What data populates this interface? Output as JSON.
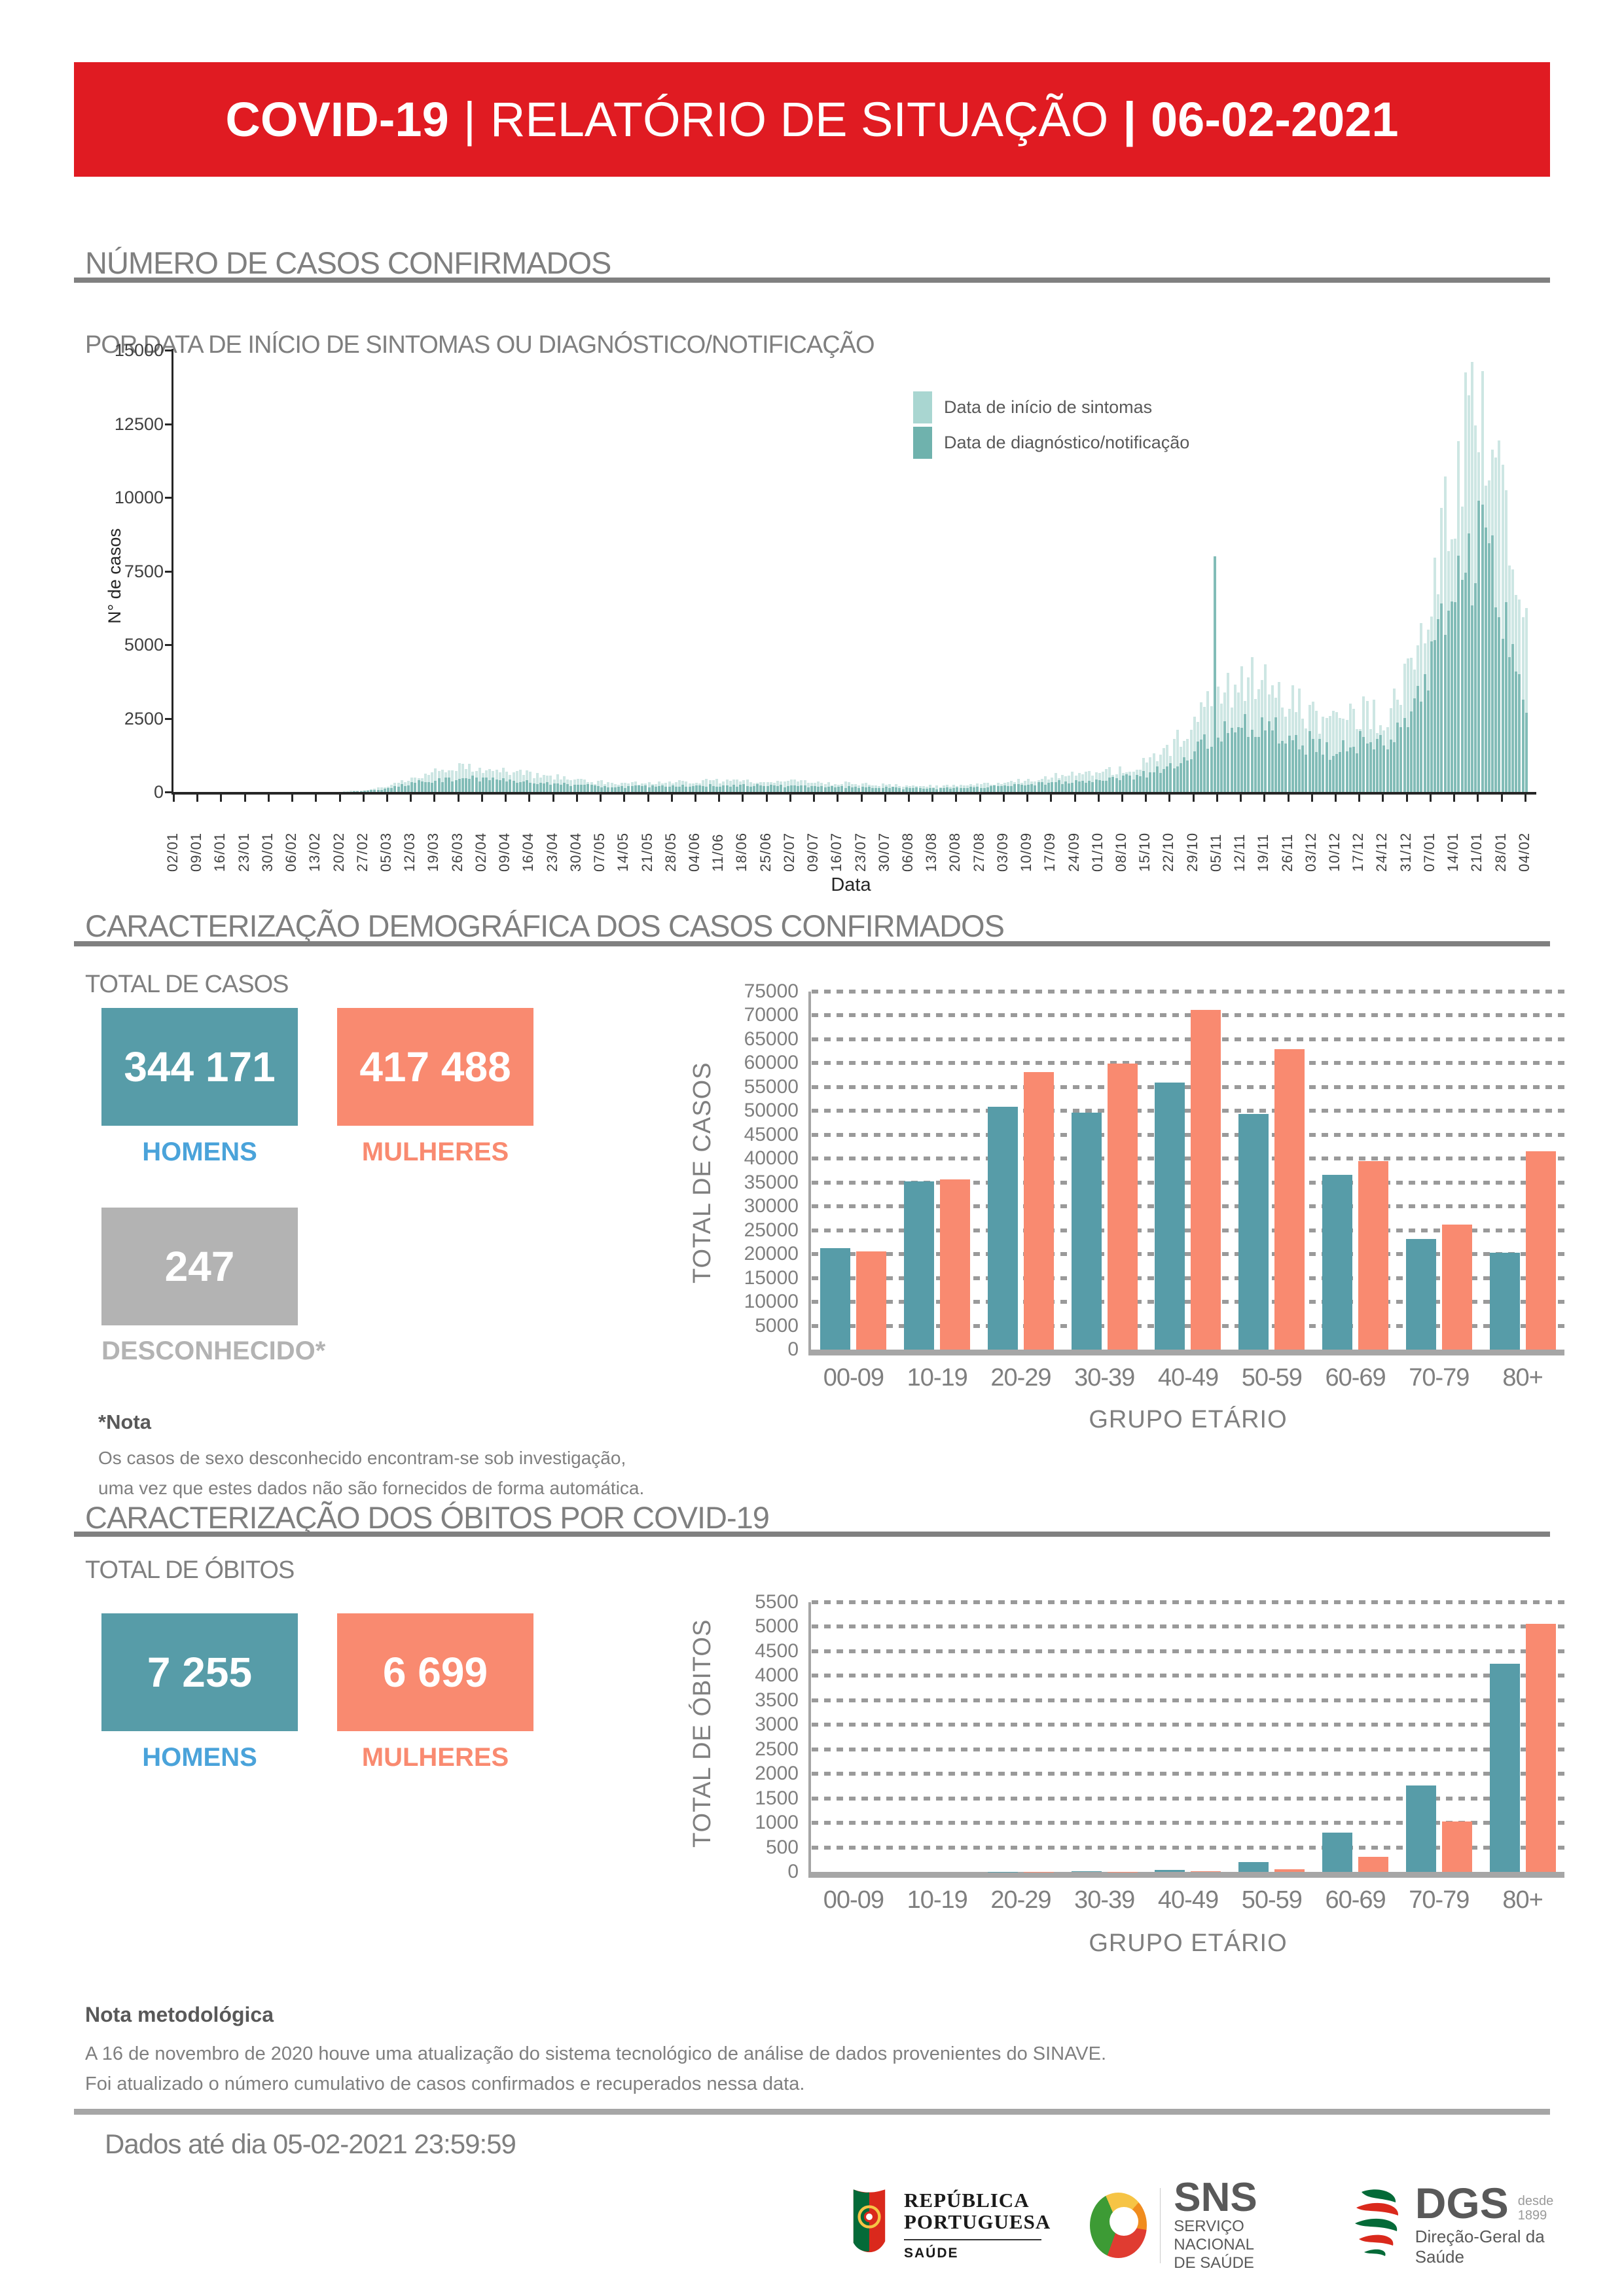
{
  "header": {
    "product": "COVID-19",
    "pipe": "|",
    "title": "RELATÓRIO DE SITUAÇÃO",
    "date": "06-02-2021"
  },
  "sections": {
    "cases": {
      "title": "NÚMERO DE CASOS CONFIRMADOS",
      "subtitle": "POR DATA DE INÍCIO DE SINTOMAS OU DIAGNÓSTICO/NOTIFICAÇÃO"
    },
    "demography": {
      "title": "CARACTERIZAÇÃO DEMOGRÁFICA DOS CASOS CONFIRMADOS",
      "total_label": "TOTAL DE CASOS",
      "cards": [
        {
          "value": "344 171",
          "label": "HOMENS"
        },
        {
          "value": "417 488",
          "label": "MULHERES"
        },
        {
          "value": "247",
          "label": "DESCONHECIDO*"
        }
      ],
      "note_title": "*Nota",
      "note_lines": [
        "Os casos de sexo desconhecido encontram-se sob investigação,",
        "uma vez que estes dados não são fornecidos de forma automática."
      ]
    },
    "deaths": {
      "title": "CARACTERIZAÇÃO DOS ÓBITOS POR COVID-19",
      "total_label": "TOTAL DE ÓBITOS",
      "cards": [
        {
          "value": "7 255",
          "label": "HOMENS"
        },
        {
          "value": "6 699",
          "label": "MULHERES"
        }
      ]
    }
  },
  "methodology": {
    "title": "Nota metodológica",
    "lines": [
      "A 16 de novembro de 2020 houve uma atualização do sistema tecnológico de análise de dados provenientes do SINAVE.",
      "Foi atualizado o número cumulativo de casos confirmados e recuperados nessa data."
    ]
  },
  "data_until": "Dados até dia 05-02-2021 23:59:59",
  "footer_logos": {
    "republica": {
      "line1": "REPÚBLICA",
      "line2": "PORTUGUESA",
      "sub": "SAÚDE"
    },
    "sns": {
      "abbr": "SNS",
      "line1": "SERVIÇO NACIONAL",
      "line2": "DE SAÚDE"
    },
    "dgs": {
      "abbr": "DGS",
      "since_word": "desde",
      "since_year": "1899",
      "sub": "Direção-Geral da Saúde"
    }
  },
  "colors": {
    "banner_red": "#e01b22",
    "title_gray": "#7f7f7f",
    "teal": "#579ca8",
    "salmon": "#f98a70",
    "gray_card": "#b3b3b3",
    "homens_blue": "#4aa3da",
    "bar_light": "#cde6e3",
    "bar_dark": "#82bcb7",
    "grid_dot": "#9a9a9a",
    "axis_gray": "#a6a6a6"
  },
  "chart_data": [
    {
      "id": "timeline",
      "type": "bar",
      "ylabel": "N° de casos",
      "xlabel": "Data",
      "ylim": [
        0,
        15000
      ],
      "yticks": [
        0,
        2500,
        5000,
        7500,
        10000,
        12500,
        15000
      ],
      "layout": {
        "legend_position": "inside-top-right",
        "grid": false,
        "bars": "daily",
        "tick_labels": "weekly"
      },
      "week_labels": [
        "02/01",
        "09/01",
        "16/01",
        "23/01",
        "30/01",
        "06/02",
        "13/02",
        "20/02",
        "27/02",
        "05/03",
        "12/03",
        "19/03",
        "26/03",
        "02/04",
        "09/04",
        "16/04",
        "23/04",
        "30/04",
        "07/05",
        "14/05",
        "21/05",
        "28/05",
        "04/06",
        "11/06",
        "18/06",
        "25/06",
        "02/07",
        "09/07",
        "16/07",
        "23/07",
        "30/07",
        "06/08",
        "13/08",
        "20/08",
        "27/08",
        "03/09",
        "10/09",
        "17/09",
        "24/09",
        "01/10",
        "08/10",
        "15/10",
        "22/10",
        "29/10",
        "05/11",
        "12/11",
        "19/11",
        "26/11",
        "03/12",
        "10/12",
        "17/12",
        "24/12",
        "31/12",
        "07/01",
        "14/01",
        "21/01",
        "28/01",
        "04/02"
      ],
      "series": [
        {
          "name": "Data de início de sintomas",
          "color": "#cde6e3",
          "weekly_values": [
            0,
            0,
            0,
            0,
            0,
            2,
            5,
            15,
            60,
            180,
            480,
            750,
            880,
            820,
            680,
            600,
            520,
            420,
            330,
            300,
            310,
            330,
            360,
            370,
            380,
            360,
            350,
            330,
            300,
            270,
            240,
            210,
            200,
            230,
            260,
            320,
            420,
            520,
            580,
            640,
            750,
            1000,
            1500,
            2400,
            3400,
            3900,
            3600,
            3100,
            2600,
            2400,
            2700,
            2600,
            3800,
            7000,
            10500,
            13500,
            10000,
            5200
          ]
        },
        {
          "name": "Data de diagnóstico/notificação",
          "color": "#82bcb7",
          "weekly_values": [
            0,
            0,
            0,
            0,
            0,
            1,
            3,
            10,
            40,
            120,
            300,
            420,
            480,
            450,
            380,
            340,
            300,
            250,
            200,
            180,
            190,
            200,
            210,
            220,
            220,
            210,
            200,
            190,
            180,
            160,
            150,
            130,
            120,
            140,
            160,
            200,
            260,
            320,
            360,
            400,
            470,
            620,
            950,
            1500,
            2100,
            2400,
            2250,
            1950,
            1650,
            1500,
            1700,
            1650,
            2400,
            4400,
            6600,
            8400,
            6200,
            3200
          ]
        }
      ],
      "outliers": [
        {
          "series": 1,
          "day": 307,
          "value": 8000
        },
        {
          "series": 0,
          "day": 383,
          "value": 14600
        },
        {
          "series": 0,
          "day": 386,
          "value": 14300
        }
      ]
    },
    {
      "id": "cases_by_age",
      "type": "bar",
      "categories": [
        "00-09",
        "10-19",
        "20-29",
        "30-39",
        "40-49",
        "50-59",
        "60-69",
        "70-79",
        "80+"
      ],
      "series": [
        {
          "name": "HOMENS",
          "color": "#579ca8",
          "values": [
            21300,
            35200,
            50900,
            49700,
            55900,
            49300,
            36600,
            23200,
            20300
          ]
        },
        {
          "name": "MULHERES",
          "color": "#f98a70",
          "values": [
            20600,
            35600,
            58200,
            59900,
            71200,
            63000,
            39500,
            26200,
            41500
          ]
        }
      ],
      "ylabel": "TOTAL DE CASOS",
      "xlabel": "GRUPO ETÁRIO",
      "ylim": [
        0,
        75000
      ],
      "ytick_step": 5000,
      "layout": {
        "grid": "dotted-horizontal",
        "legend_position": "none"
      }
    },
    {
      "id": "deaths_by_age",
      "type": "bar",
      "categories": [
        "00-09",
        "10-19",
        "20-29",
        "30-39",
        "40-49",
        "50-59",
        "60-69",
        "70-79",
        "80+"
      ],
      "series": [
        {
          "name": "HOMENS",
          "color": "#579ca8",
          "values": [
            1,
            1,
            4,
            12,
            40,
            200,
            800,
            1760,
            4250
          ]
        },
        {
          "name": "MULHERES",
          "color": "#f98a70",
          "values": [
            1,
            0,
            2,
            6,
            18,
            60,
            310,
            1030,
            5060
          ]
        }
      ],
      "ylabel": "TOTAL DE ÓBITOS",
      "xlabel": "GRUPO ETÁRIO",
      "ylim": [
        0,
        5500
      ],
      "ytick_step": 500,
      "layout": {
        "grid": "dotted-horizontal",
        "legend_position": "none"
      }
    }
  ]
}
